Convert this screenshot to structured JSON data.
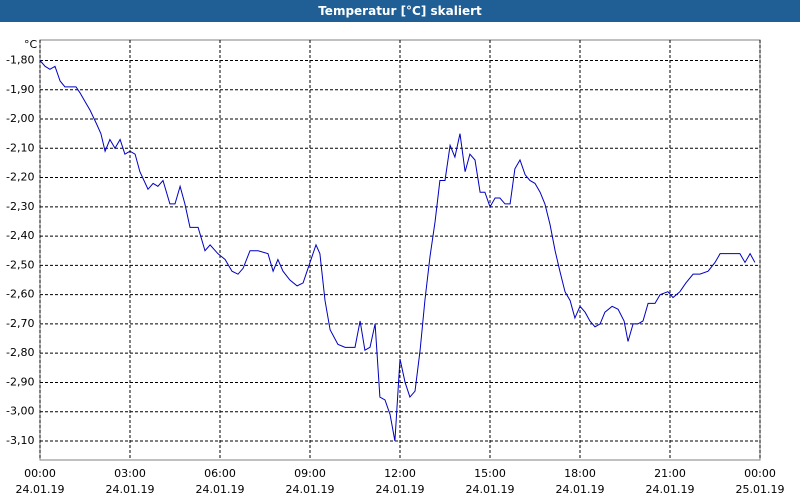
{
  "chart_data": {
    "type": "line",
    "title": "Temperatur [°C] skaliert",
    "unit_label": "°C",
    "color": "#0000c0",
    "grid": true,
    "xlim": [
      0,
      24
    ],
    "xticks": [
      {
        "value": 0,
        "label": "00:00",
        "date": "24.01.19"
      },
      {
        "value": 3,
        "label": "03:00",
        "date": "24.01.19"
      },
      {
        "value": 6,
        "label": "06:00",
        "date": "24.01.19"
      },
      {
        "value": 9,
        "label": "09:00",
        "date": "24.01.19"
      },
      {
        "value": 12,
        "label": "12:00",
        "date": "24.01.19"
      },
      {
        "value": 15,
        "label": "15:00",
        "date": "24.01.19"
      },
      {
        "value": 18,
        "label": "18:00",
        "date": "24.01.19"
      },
      {
        "value": 21,
        "label": "21:00",
        "date": "24.01.19"
      },
      {
        "value": 24,
        "label": "00:00",
        "date": "25.01.19"
      }
    ],
    "ylim": [
      -3.165,
      -1.73
    ],
    "yticks": [
      {
        "value": -1.8,
        "label": "-1,80"
      },
      {
        "value": -1.9,
        "label": "-1,90"
      },
      {
        "value": -2.0,
        "label": "-2,00"
      },
      {
        "value": -2.1,
        "label": "-2,10"
      },
      {
        "value": -2.2,
        "label": "-2,20"
      },
      {
        "value": -2.3,
        "label": "-2,30"
      },
      {
        "value": -2.4,
        "label": "-2,40"
      },
      {
        "value": -2.5,
        "label": "-2,50"
      },
      {
        "value": -2.6,
        "label": "-2,60"
      },
      {
        "value": -2.7,
        "label": "-2,70"
      },
      {
        "value": -2.8,
        "label": "-2,80"
      },
      {
        "value": -2.9,
        "label": "-2,90"
      },
      {
        "value": -3.0,
        "label": "-3,00"
      },
      {
        "value": -3.1,
        "label": "-3,10"
      }
    ],
    "x": [
      0,
      0.17,
      0.33,
      0.5,
      0.67,
      0.83,
      1.07,
      1.2,
      1.33,
      1.5,
      1.67,
      1.9,
      2.03,
      2.17,
      2.33,
      2.5,
      2.67,
      2.83,
      3,
      3.17,
      3.33,
      3.6,
      3.77,
      3.93,
      4.1,
      4.33,
      4.5,
      4.67,
      4.83,
      5,
      5.27,
      5.5,
      5.67,
      5.93,
      6.17,
      6.4,
      6.6,
      6.77,
      7,
      7.27,
      7.6,
      7.77,
      7.93,
      8.1,
      8.33,
      8.57,
      8.77,
      9,
      9.2,
      9.33,
      9.5,
      9.67,
      9.93,
      10.17,
      10.5,
      10.67,
      10.83,
      11,
      11.17,
      11.33,
      11.5,
      11.67,
      11.83,
      12,
      12.17,
      12.33,
      12.5,
      12.67,
      12.83,
      13,
      13.17,
      13.33,
      13.5,
      13.67,
      13.83,
      14,
      14.17,
      14.33,
      14.5,
      14.67,
      14.83,
      15,
      15.17,
      15.33,
      15.5,
      15.67,
      15.83,
      16,
      16.17,
      16.33,
      16.5,
      16.67,
      16.83,
      17,
      17.17,
      17.33,
      17.5,
      17.67,
      17.83,
      18,
      18.17,
      18.33,
      18.5,
      18.67,
      18.83,
      19.07,
      19.27,
      19.47,
      19.6,
      19.77,
      19.93,
      20.1,
      20.27,
      20.5,
      20.67,
      20.93,
      21.1,
      21.33,
      21.53,
      21.77,
      22,
      22.27,
      22.5,
      22.67,
      22.93,
      23.1,
      23.33,
      23.5,
      23.67,
      23.83
    ],
    "values": [
      -1.8,
      -1.82,
      -1.83,
      -1.82,
      -1.87,
      -1.89,
      -1.89,
      -1.89,
      -1.91,
      -1.94,
      -1.97,
      -2.02,
      -2.05,
      -2.11,
      -2.07,
      -2.1,
      -2.07,
      -2.12,
      -2.11,
      -2.12,
      -2.18,
      -2.24,
      -2.22,
      -2.23,
      -2.21,
      -2.29,
      -2.29,
      -2.23,
      -2.29,
      -2.37,
      -2.37,
      -2.45,
      -2.43,
      -2.46,
      -2.48,
      -2.52,
      -2.53,
      -2.51,
      -2.45,
      -2.45,
      -2.46,
      -2.52,
      -2.48,
      -2.52,
      -2.55,
      -2.57,
      -2.56,
      -2.49,
      -2.43,
      -2.46,
      -2.62,
      -2.72,
      -2.77,
      -2.78,
      -2.78,
      -2.69,
      -2.79,
      -2.78,
      -2.7,
      -2.95,
      -2.96,
      -3.01,
      -3.1,
      -2.82,
      -2.9,
      -2.95,
      -2.93,
      -2.79,
      -2.62,
      -2.47,
      -2.35,
      -2.21,
      -2.21,
      -2.09,
      -2.13,
      -2.05,
      -2.18,
      -2.12,
      -2.14,
      -2.25,
      -2.25,
      -2.3,
      -2.27,
      -2.27,
      -2.29,
      -2.29,
      -2.17,
      -2.14,
      -2.19,
      -2.21,
      -2.22,
      -2.25,
      -2.29,
      -2.36,
      -2.45,
      -2.52,
      -2.59,
      -2.62,
      -2.68,
      -2.64,
      -2.66,
      -2.69,
      -2.71,
      -2.7,
      -2.66,
      -2.64,
      -2.65,
      -2.69,
      -2.76,
      -2.7,
      -2.7,
      -2.69,
      -2.63,
      -2.63,
      -2.6,
      -2.59,
      -2.61,
      -2.59,
      -2.56,
      -2.53,
      -2.53,
      -2.52,
      -2.49,
      -2.46,
      -2.46,
      -2.46,
      -2.46,
      -2.49,
      -2.46,
      -2.49
    ]
  }
}
